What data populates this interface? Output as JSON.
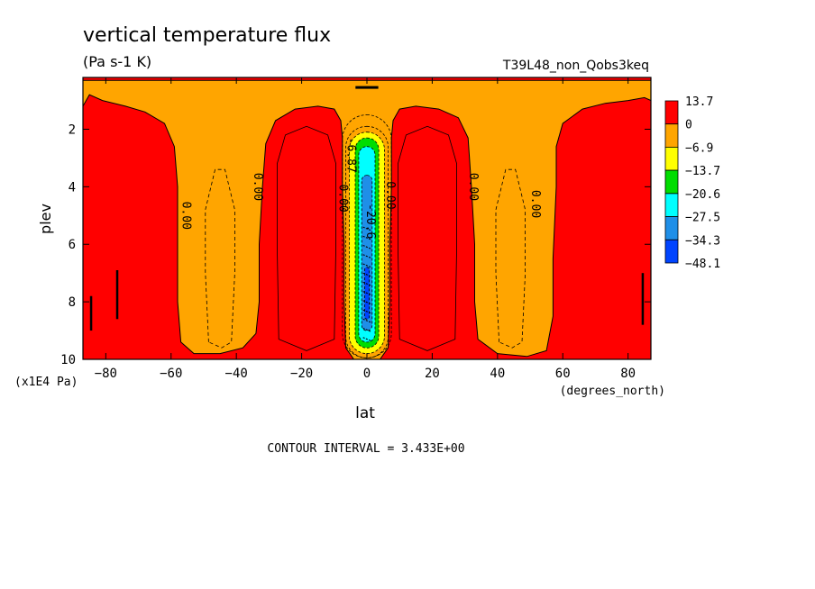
{
  "chart_data": {
    "type": "heatmap",
    "title": "vertical temperature flux",
    "units": "(Pa s-1 K)",
    "experiment": "T39L48_non_Qobs3keq",
    "xlabel": "lat",
    "x_units": "(degrees_north)",
    "ylabel": "plev",
    "y_units": "(x1E4 Pa)",
    "xlim": [
      -87,
      87
    ],
    "ylim": [
      10,
      0.2
    ],
    "x_ticks": [
      {
        "v": -80,
        "label": "−80"
      },
      {
        "v": -60,
        "label": "−60"
      },
      {
        "v": -40,
        "label": "−40"
      },
      {
        "v": -20,
        "label": "−20"
      },
      {
        "v": 0,
        "label": "0"
      },
      {
        "v": 20,
        "label": "20"
      },
      {
        "v": 40,
        "label": "40"
      },
      {
        "v": 60,
        "label": "60"
      },
      {
        "v": 80,
        "label": "80"
      }
    ],
    "y_ticks": [
      {
        "v": 2,
        "label": "2"
      },
      {
        "v": 4,
        "label": "4"
      },
      {
        "v": 6,
        "label": "6"
      },
      {
        "v": 8,
        "label": "8"
      },
      {
        "v": 10,
        "label": "10"
      }
    ],
    "legend": {
      "placement": "right",
      "labels": [
        "13.7",
        "0",
        "−6.9",
        "−13.7",
        "−20.6",
        "−27.5",
        "−34.3",
        "−48.1"
      ],
      "colors": [
        "#ff0000",
        "#ffa500",
        "#ffff00",
        "#00dd00",
        "#00ffff",
        "#1f8fe8",
        "#0044ff"
      ]
    },
    "contour_interval_text": "CONTOUR INTERVAL = 3.433E+00",
    "contour_labels": [
      {
        "text": "0.00",
        "lat": -55.5,
        "plev": 5.0
      },
      {
        "text": "0.00",
        "lat": -33.5,
        "plev": 4.0
      },
      {
        "text": "0.00",
        "lat": -7.5,
        "plev": 4.4
      },
      {
        "text": "-6.87",
        "lat": -5.0,
        "plev": 2.9
      },
      {
        "text": "-20.6",
        "lat": 1.0,
        "plev": 5.2
      },
      {
        "text": "0.00",
        "lat": 7.0,
        "plev": 4.3
      },
      {
        "text": "0.00",
        "lat": 32.5,
        "plev": 4.0
      },
      {
        "text": "0.00",
        "lat": 51.5,
        "plev": 4.6
      }
    ]
  }
}
